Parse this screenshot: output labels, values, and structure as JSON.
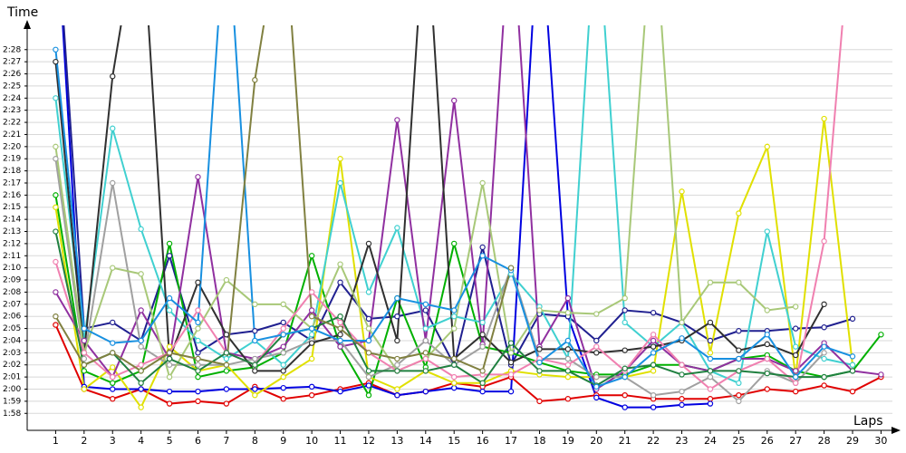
{
  "chart_data": {
    "type": "line",
    "y_label": "Time",
    "x_label": "Laps",
    "x": [
      1,
      2,
      3,
      4,
      5,
      6,
      7,
      8,
      9,
      10,
      11,
      12,
      13,
      14,
      15,
      16,
      17,
      18,
      19,
      20,
      21,
      22,
      23,
      24,
      25,
      26,
      27,
      28,
      29,
      30
    ],
    "xlim": [
      0,
      30.4
    ],
    "xticks": [
      1,
      2,
      3,
      4,
      5,
      6,
      7,
      8,
      9,
      10,
      11,
      12,
      13,
      14,
      15,
      16,
      17,
      18,
      19,
      20,
      21,
      22,
      23,
      24,
      25,
      26,
      27,
      28,
      29,
      30
    ],
    "ylim": [
      116.6,
      150
    ],
    "yticks": [
      {
        "value": 118,
        "label": "1:58"
      },
      {
        "value": 119,
        "label": "1:59"
      },
      {
        "value": 120,
        "label": "2:00"
      },
      {
        "value": 121,
        "label": "2:01"
      },
      {
        "value": 122,
        "label": "2:02"
      },
      {
        "value": 123,
        "label": "2:03"
      },
      {
        "value": 124,
        "label": "2:04"
      },
      {
        "value": 125,
        "label": "2:05"
      },
      {
        "value": 126,
        "label": "2:06"
      },
      {
        "value": 127,
        "label": "2:07"
      },
      {
        "value": 128,
        "label": "2:08"
      },
      {
        "value": 129,
        "label": "2:09"
      },
      {
        "value": 130,
        "label": "2:10"
      },
      {
        "value": 131,
        "label": "2:11"
      },
      {
        "value": 132,
        "label": "2:12"
      },
      {
        "value": 133,
        "label": "2:13"
      },
      {
        "value": 134,
        "label": "2:14"
      },
      {
        "value": 135,
        "label": "2:15"
      },
      {
        "value": 136,
        "label": "2:16"
      },
      {
        "value": 137,
        "label": "2:17"
      },
      {
        "value": 138,
        "label": "2:18"
      },
      {
        "value": 139,
        "label": "2:19"
      },
      {
        "value": 140,
        "label": "2:20"
      },
      {
        "value": 141,
        "label": "2:21"
      },
      {
        "value": 142,
        "label": "2:22"
      },
      {
        "value": 143,
        "label": "2:23"
      },
      {
        "value": 144,
        "label": "2:24"
      },
      {
        "value": 145,
        "label": "2:25"
      },
      {
        "value": 146,
        "label": "2:26"
      },
      {
        "value": 147,
        "label": "2:27"
      },
      {
        "value": 148,
        "label": "2:28"
      }
    ],
    "grid": true,
    "series": [
      {
        "color": "#e00000",
        "values": [
          125.3,
          120,
          119.2,
          120,
          118.8,
          119,
          118.8,
          120.2,
          119.2,
          119.5,
          120,
          120.5,
          119.5,
          119.8,
          120.5,
          120.2,
          121,
          119,
          119.2,
          119.5,
          119.5,
          119.2,
          119.2,
          119.2,
          119.5,
          120,
          119.8,
          120.3,
          119.8,
          121
        ]
      },
      {
        "color": "#0000e0",
        "values": [
          160,
          120.2,
          120,
          120,
          119.8,
          119.8,
          120,
          120,
          120.1,
          120.2,
          119.8,
          120.3,
          119.5,
          119.8,
          120.1,
          119.8,
          119.8,
          160,
          126,
          119.3,
          118.5,
          118.5,
          118.7,
          118.8,
          null,
          null,
          null,
          null,
          null,
          null
        ]
      },
      {
        "color": "#202090",
        "values": [
          160,
          125,
          125.5,
          124,
          131,
          123,
          124.5,
          124.8,
          125.5,
          124,
          128.8,
          125.8,
          126,
          126.5,
          122,
          131.7,
          122,
          126.2,
          126,
          124,
          126.5,
          126.3,
          125.5,
          124,
          124.8,
          124.8,
          125,
          125.1,
          125.8,
          null
        ]
      },
      {
        "color": "#00b000",
        "values": [
          136,
          121.5,
          120.5,
          121.5,
          132,
          121,
          121.5,
          121.8,
          123,
          131,
          123.5,
          119.5,
          127.5,
          121.8,
          132,
          123.5,
          123,
          122.2,
          121.5,
          121.2,
          121.2,
          122,
          122,
          121.5,
          122.5,
          122.8,
          121.5,
          121,
          121.5,
          124.5
        ]
      },
      {
        "color": "#e0e000",
        "values": [
          135,
          120,
          121.8,
          118.5,
          123.5,
          121.5,
          122,
          119.5,
          121,
          122.5,
          139,
          121,
          120,
          121.5,
          120.5,
          120.5,
          121.5,
          121.2,
          121,
          121,
          121,
          121.5,
          136.3,
          123,
          134.5,
          140,
          121,
          142.3,
          122,
          null
        ]
      },
      {
        "color": "#40d0d0",
        "values": [
          144,
          124,
          141.5,
          133.2,
          126.5,
          124,
          122.5,
          124,
          122,
          124.5,
          137,
          128,
          133.3,
          125,
          126,
          125.5,
          129.5,
          126.8,
          122.5,
          160,
          125.5,
          123.5,
          125.5,
          121.5,
          120.5,
          133,
          123.5,
          122.5,
          122,
          null
        ]
      },
      {
        "color": "#9030a0",
        "values": [
          128,
          124,
          121,
          126.5,
          122.5,
          137.5,
          123,
          122.5,
          123.5,
          126.5,
          123.5,
          124,
          142.2,
          124,
          143.8,
          123.7,
          160,
          123.5,
          127.5,
          120,
          121.5,
          124,
          122,
          121.5,
          122.5,
          122.5,
          121.5,
          123.8,
          121.5,
          121.2
        ]
      },
      {
        "color": "#a0a0a0",
        "values": [
          139,
          122.5,
          137,
          123.5,
          122,
          122,
          122,
          122.5,
          123,
          124,
          124,
          121,
          122,
          124,
          122,
          123.5,
          130,
          122.5,
          122.5,
          121,
          121,
          119.5,
          119.8,
          121,
          119,
          121.5,
          120.5,
          123,
          null,
          null
        ]
      },
      {
        "color": "#303030",
        "values": [
          147,
          123,
          145.8,
          160,
          122.5,
          128.8,
          124.5,
          121.5,
          121.5,
          123.8,
          124.5,
          132,
          124,
          160,
          122.5,
          124.5,
          122.2,
          123.3,
          123.3,
          123,
          123.2,
          123.5,
          124,
          125.5,
          123.2,
          123.7,
          122.8,
          127,
          null,
          null
        ]
      },
      {
        "color": "#a8c878",
        "values": [
          140,
          123,
          130,
          129.5,
          121,
          125,
          129,
          127,
          127,
          125,
          130.3,
          125,
          121.5,
          122.5,
          125,
          137,
          123,
          126.5,
          126.3,
          126.2,
          127.5,
          160,
          125.5,
          128.8,
          128.8,
          126.5,
          126.8,
          null,
          null,
          null
        ]
      },
      {
        "color": "#f080b0",
        "values": [
          130.5,
          123,
          121,
          122,
          123,
          126.5,
          123,
          122,
          125,
          128,
          125.5,
          123,
          121.5,
          122.5,
          121,
          121.2,
          121.2,
          122.5,
          122,
          123.5,
          121.5,
          124.5,
          122,
          120,
          121.5,
          122.5,
          120.5,
          132.2,
          160,
          null
        ]
      },
      {
        "color": "#208040",
        "values": [
          133,
          122,
          123,
          120.5,
          122.5,
          121.5,
          123,
          122,
          124.5,
          125,
          126,
          121.5,
          121.5,
          121.5,
          122,
          120.5,
          123.8,
          121.5,
          121.5,
          120.3,
          121.7,
          122,
          121.2,
          121.5,
          121.5,
          121.3,
          121,
          121,
          121.5,
          null
        ]
      },
      {
        "color": "#1890e0",
        "values": [
          148,
          125,
          123.8,
          124,
          127.5,
          125.5,
          160,
          124,
          124.5,
          125,
          124,
          124,
          127.5,
          127,
          126.5,
          131,
          129.8,
          122.2,
          124,
          120.2,
          121,
          123,
          124.2,
          122.5,
          122.5,
          124.5,
          121,
          123.5,
          122.7,
          null
        ]
      },
      {
        "color": "#808040",
        "values": [
          126,
          122,
          123,
          121.5,
          123,
          122.5,
          122,
          145.5,
          160,
          126,
          125,
          123,
          122.5,
          123,
          122.5,
          121.5,
          130,
          null,
          null,
          null,
          null,
          null,
          null,
          null,
          null,
          null,
          null,
          null,
          null,
          null
        ]
      }
    ]
  }
}
